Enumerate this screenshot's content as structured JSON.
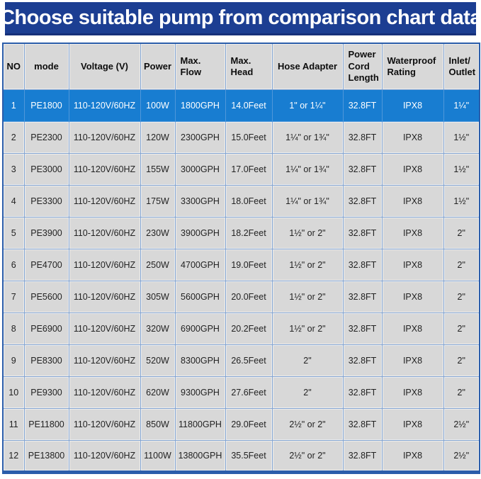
{
  "banner": {
    "title": "Choose suitable pump from comparison chart data",
    "background_color": "#1c3e92",
    "text_color": "#ffffff"
  },
  "table": {
    "highlighted_row_index": 0,
    "highlight_color": "#187dd1",
    "cell_color": "#d8d8d8",
    "grid_color": "#84a5d2",
    "columns": [
      {
        "key": "no",
        "label": "NO"
      },
      {
        "key": "mode",
        "label": "mode"
      },
      {
        "key": "voltage",
        "label": "Voltage (V)"
      },
      {
        "key": "power",
        "label": "Power"
      },
      {
        "key": "max-flow",
        "label": "Max.\nFlow"
      },
      {
        "key": "max-head",
        "label": "Max.\nHead"
      },
      {
        "key": "hose-adapter",
        "label": "Hose Adapter"
      },
      {
        "key": "power-cord-length",
        "label": "Power\nCord\nLength"
      },
      {
        "key": "waterproof-rating",
        "label": "Waterproof\nRating"
      },
      {
        "key": "inlet-outlet",
        "label": "Inlet/\nOutlet"
      }
    ],
    "rows": [
      [
        "1",
        "PE1800",
        "110-120V/60HZ",
        "100W",
        "1800GPH",
        "14.0Feet",
        "1\" or 1¼\"",
        "32.8FT",
        "IPX8",
        "1¼\""
      ],
      [
        "2",
        "PE2300",
        "110-120V/60HZ",
        "120W",
        "2300GPH",
        "15.0Feet",
        "1¼\" or 1¾\"",
        "32.8FT",
        "IPX8",
        "1½\""
      ],
      [
        "3",
        "PE3000",
        "110-120V/60HZ",
        "155W",
        "3000GPH",
        "17.0Feet",
        "1¼\" or 1¾\"",
        "32.8FT",
        "IPX8",
        "1½\""
      ],
      [
        "4",
        "PE3300",
        "110-120V/60HZ",
        "175W",
        "3300GPH",
        "18.0Feet",
        "1¼\" or 1¾\"",
        "32.8FT",
        "IPX8",
        "1½\""
      ],
      [
        "5",
        "PE3900",
        "110-120V/60HZ",
        "230W",
        "3900GPH",
        "18.2Feet",
        "1½\" or 2\"",
        "32.8FT",
        "IPX8",
        "2\""
      ],
      [
        "6",
        "PE4700",
        "110-120V/60HZ",
        "250W",
        "4700GPH",
        "19.0Feet",
        "1½\" or 2\"",
        "32.8FT",
        "IPX8",
        "2\""
      ],
      [
        "7",
        "PE5600",
        "110-120V/60HZ",
        "305W",
        "5600GPH",
        "20.0Feet",
        "1½\" or 2\"",
        "32.8FT",
        "IPX8",
        "2\""
      ],
      [
        "8",
        "PE6900",
        "110-120V/60HZ",
        "320W",
        "6900GPH",
        "20.2Feet",
        "1½\" or 2\"",
        "32.8FT",
        "IPX8",
        "2\""
      ],
      [
        "9",
        "PE8300",
        "110-120V/60HZ",
        "520W",
        "8300GPH",
        "26.5Feet",
        "2\"",
        "32.8FT",
        "IPX8",
        "2\""
      ],
      [
        "10",
        "PE9300",
        "110-120V/60HZ",
        "620W",
        "9300GPH",
        "27.6Feet",
        "2\"",
        "32.8FT",
        "IPX8",
        "2\""
      ],
      [
        "11",
        "PE11800",
        "110-120V/60HZ",
        "850W",
        "11800GPH",
        "29.0Feet",
        "2½\" or 2\"",
        "32.8FT",
        "IPX8",
        "2½\""
      ],
      [
        "12",
        "PE13800",
        "110-120V/60HZ",
        "1100W",
        "13800GPH",
        "35.5Feet",
        "2½\" or 2\"",
        "32.8FT",
        "IPX8",
        "2½\""
      ]
    ]
  },
  "chart_data": {
    "type": "table",
    "title": "Choose suitable pump from comparison chart data",
    "columns": [
      "NO",
      "mode",
      "Voltage (V)",
      "Power",
      "Max. Flow",
      "Max. Head",
      "Hose Adapter",
      "Power Cord Length",
      "Waterproof Rating",
      "Inlet/Outlet"
    ],
    "rows": [
      [
        "1",
        "PE1800",
        "110-120V/60HZ",
        "100W",
        "1800GPH",
        "14.0Feet",
        "1\" or 1¼\"",
        "32.8FT",
        "IPX8",
        "1¼\""
      ],
      [
        "2",
        "PE2300",
        "110-120V/60HZ",
        "120W",
        "2300GPH",
        "15.0Feet",
        "1¼\" or 1¾\"",
        "32.8FT",
        "IPX8",
        "1½\""
      ],
      [
        "3",
        "PE3000",
        "110-120V/60HZ",
        "155W",
        "3000GPH",
        "17.0Feet",
        "1¼\" or 1¾\"",
        "32.8FT",
        "IPX8",
        "1½\""
      ],
      [
        "4",
        "PE3300",
        "110-120V/60HZ",
        "175W",
        "3300GPH",
        "18.0Feet",
        "1¼\" or 1¾\"",
        "32.8FT",
        "IPX8",
        "1½\""
      ],
      [
        "5",
        "PE3900",
        "110-120V/60HZ",
        "230W",
        "3900GPH",
        "18.2Feet",
        "1½\" or 2\"",
        "32.8FT",
        "IPX8",
        "2\""
      ],
      [
        "6",
        "PE4700",
        "110-120V/60HZ",
        "250W",
        "4700GPH",
        "19.0Feet",
        "1½\" or 2\"",
        "32.8FT",
        "IPX8",
        "2\""
      ],
      [
        "7",
        "PE5600",
        "110-120V/60HZ",
        "305W",
        "5600GPH",
        "20.0Feet",
        "1½\" or 2\"",
        "32.8FT",
        "IPX8",
        "2\""
      ],
      [
        "8",
        "PE6900",
        "110-120V/60HZ",
        "320W",
        "6900GPH",
        "20.2Feet",
        "1½\" or 2\"",
        "32.8FT",
        "IPX8",
        "2\""
      ],
      [
        "9",
        "PE8300",
        "110-120V/60HZ",
        "520W",
        "8300GPH",
        "26.5Feet",
        "2\"",
        "32.8FT",
        "IPX8",
        "2\""
      ],
      [
        "10",
        "PE9300",
        "110-120V/60HZ",
        "620W",
        "9300GPH",
        "27.6Feet",
        "2\"",
        "32.8FT",
        "IPX8",
        "2\""
      ],
      [
        "11",
        "PE11800",
        "110-120V/60HZ",
        "850W",
        "11800GPH",
        "29.0Feet",
        "2½\" or 2\"",
        "32.8FT",
        "IPX8",
        "2½\""
      ],
      [
        "12",
        "PE13800",
        "110-120V/60HZ",
        "1100W",
        "13800GPH",
        "35.5Feet",
        "2½\" or 2\"",
        "32.8FT",
        "IPX8",
        "2½\""
      ]
    ]
  }
}
